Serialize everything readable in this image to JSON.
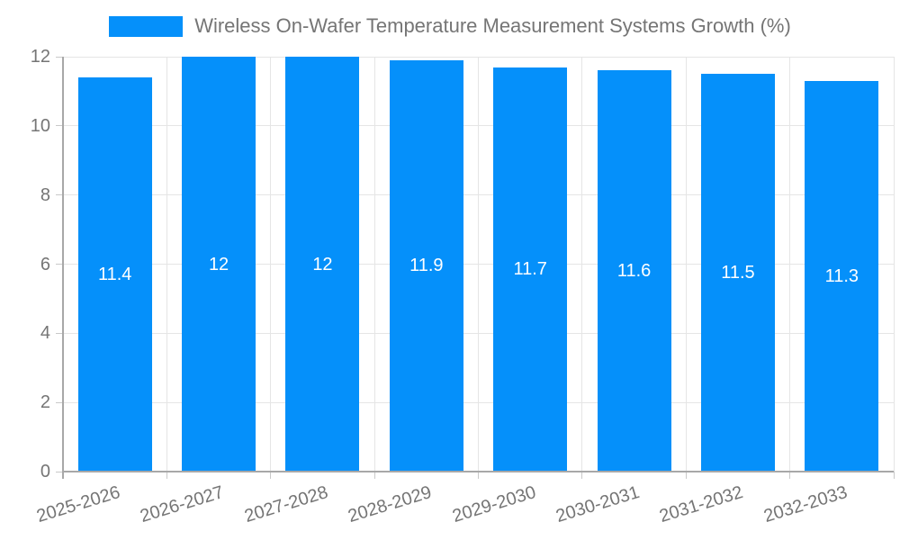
{
  "chart_data": {
    "type": "bar",
    "title": "Wireless On-Wafer Temperature Measurement Systems Growth (%)",
    "legend": {
      "position": "top",
      "entries": [
        {
          "label": "Wireless On-Wafer Temperature Measurement Systems Growth (%)",
          "color": "#0590FA"
        }
      ]
    },
    "categories": [
      "2025-2026",
      "2026-2027",
      "2027-2028",
      "2028-2029",
      "2029-2030",
      "2030-2031",
      "2031-2032",
      "2032-2033"
    ],
    "values": [
      11.4,
      12,
      12,
      11.9,
      11.7,
      11.6,
      11.5,
      11.3
    ],
    "value_labels": [
      "11.4",
      "12",
      "12",
      "11.9",
      "11.7",
      "11.6",
      "11.5",
      "11.3"
    ],
    "xlabel": "",
    "ylabel": "",
    "ylim": [
      0,
      12
    ],
    "yticks": [
      0,
      2,
      4,
      6,
      8,
      10,
      12
    ],
    "grid": true,
    "x_tick_rotation_deg": -17,
    "colors": {
      "bar": "#0590FA",
      "value_label": "#FFFFFF",
      "grid": "#E5E5E5",
      "tick": "#C9C9C9",
      "axis": "#A8A8A8",
      "text": "#757575"
    }
  }
}
